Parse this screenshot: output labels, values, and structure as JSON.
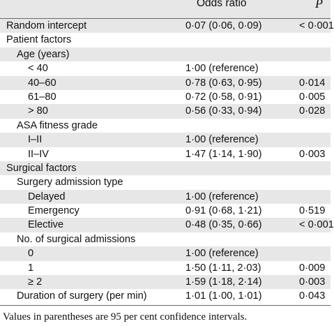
{
  "header": {
    "odds_ratio": "Odds ratio",
    "p": "P"
  },
  "rows": [
    {
      "label": "Random intercept",
      "level": 0,
      "or": "0·07 (0·06, 0·09)",
      "p": "< 0·001",
      "shaded": true
    },
    {
      "label": "Patient factors",
      "level": 0,
      "or": "",
      "p": "",
      "shaded": false
    },
    {
      "label": "Age (years)",
      "level": 1,
      "or": "",
      "p": "",
      "shaded": true
    },
    {
      "label": "< 40",
      "level": 2,
      "or": "1·00 (reference)",
      "p": "",
      "shaded": false
    },
    {
      "label": "40–60",
      "level": 2,
      "or": "0·78 (0·63, 0·95)",
      "p": "0·014",
      "shaded": true
    },
    {
      "label": "61–80",
      "level": 2,
      "or": "0·72 (0·58, 0·91)",
      "p": "0·005",
      "shaded": false
    },
    {
      "label": "> 80",
      "level": 2,
      "or": "0·56 (0·33, 0·94)",
      "p": "0·028",
      "shaded": true
    },
    {
      "label": "ASA fitness grade",
      "level": 1,
      "or": "",
      "p": "",
      "shaded": false
    },
    {
      "label": "I–II",
      "level": 2,
      "or": "1·00 (reference)",
      "p": "",
      "shaded": true
    },
    {
      "label": "II–IV",
      "level": 2,
      "or": "1·47 (1·14, 1·90)",
      "p": "0·003",
      "shaded": false
    },
    {
      "label": "Surgical factors",
      "level": 0,
      "or": "",
      "p": "",
      "shaded": true
    },
    {
      "label": "Surgery admission type",
      "level": 1,
      "or": "",
      "p": "",
      "shaded": false
    },
    {
      "label": "Delayed",
      "level": 2,
      "or": "1·00 (reference)",
      "p": "",
      "shaded": true
    },
    {
      "label": "Emergency",
      "level": 2,
      "or": "0·91 (0·68, 1·21)",
      "p": "0·519",
      "shaded": false
    },
    {
      "label": "Elective",
      "level": 2,
      "or": "0·48 (0·35, 0·66)",
      "p": "< 0·001",
      "shaded": true
    },
    {
      "label": "No. of surgical admissions",
      "level": 1,
      "or": "",
      "p": "",
      "shaded": false
    },
    {
      "label": "0",
      "level": 2,
      "or": "1·00 (reference)",
      "p": "",
      "shaded": true
    },
    {
      "label": "1",
      "level": 2,
      "or": "1·50 (1·11, 2·03)",
      "p": "0·009",
      "shaded": false
    },
    {
      "label": "≥ 2",
      "level": 2,
      "or": "1·59 (1·18, 2·14)",
      "p": "0·003",
      "shaded": true
    },
    {
      "label": "Duration of surgery (per min)",
      "level": 1,
      "or": "1·01 (1·00, 1·01)",
      "p": "0·043",
      "shaded": false
    }
  ],
  "footnote": "Values in parentheses are 95 per cent confidence intervals."
}
